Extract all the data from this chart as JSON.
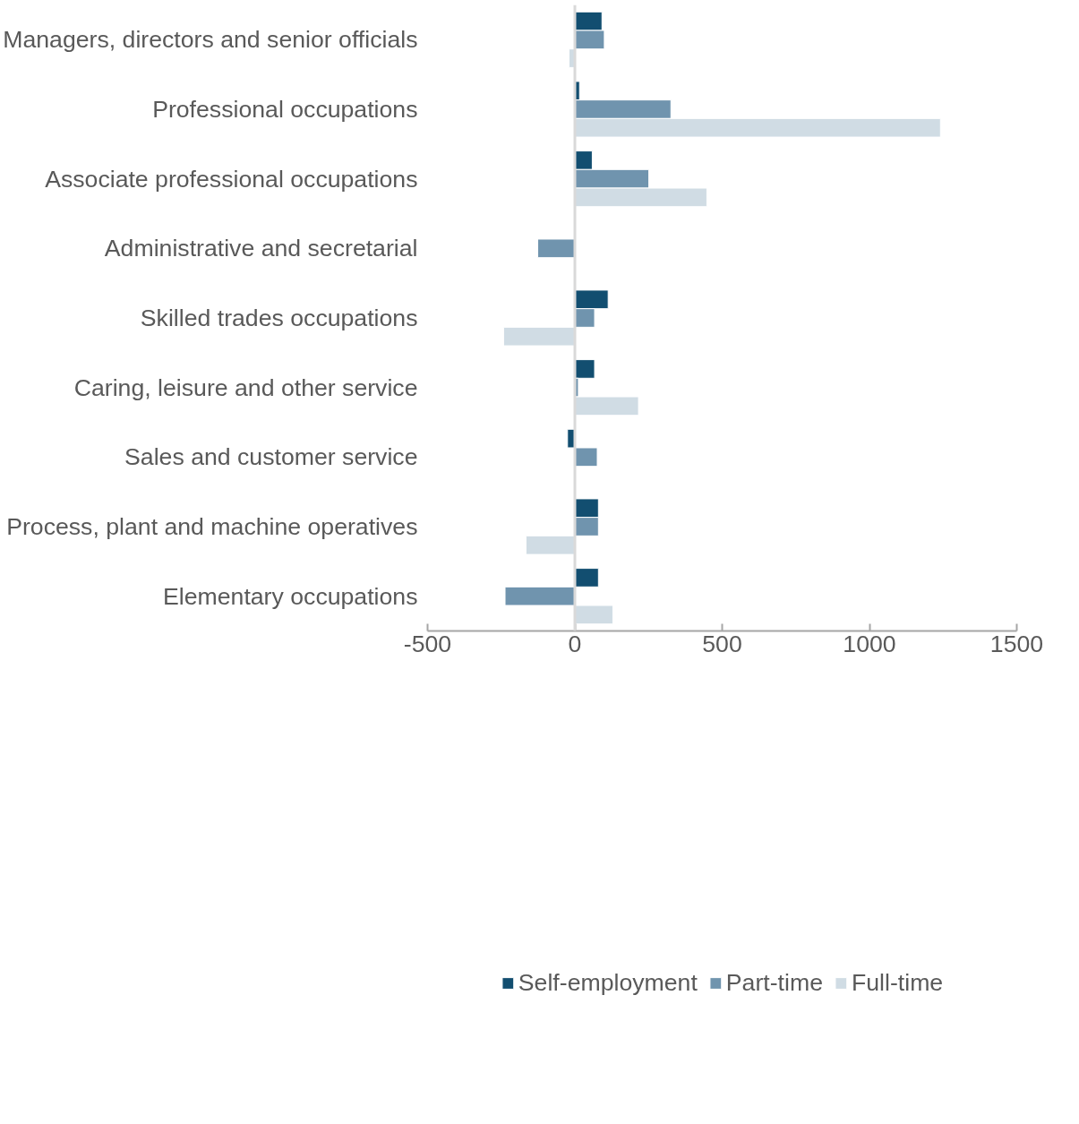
{
  "chart_data": {
    "type": "bar",
    "orientation": "horizontal",
    "categories": [
      "Managers, directors and senior officials",
      "Professional occupations",
      "Associate professional occupations",
      "Administrative and secretarial",
      "Skilled trades occupations",
      "Caring, leisure and other service",
      "Sales and customer service",
      "Process, plant and machine operatives",
      "Elementary occupations"
    ],
    "series": [
      {
        "name": "Self-employment",
        "color": "#124e70",
        "values": [
          92,
          16,
          59,
          null,
          113,
          67,
          -25,
          80,
          80
        ]
      },
      {
        "name": "Part-time",
        "color": "#7094ae",
        "values": [
          100,
          326,
          251,
          -126,
          67,
          12,
          76,
          80,
          -237
        ]
      },
      {
        "name": "Full-time",
        "color": "#d0dce4",
        "values": [
          -20,
          1241,
          448,
          null,
          -242,
          216,
          null,
          -166,
          129
        ]
      }
    ],
    "ref_lines": [
      {
        "axis": "x",
        "value": 0,
        "color": "#d9d9d9"
      }
    ],
    "xlim": [
      -500,
      1500
    ],
    "xticks": [
      -500,
      0,
      500,
      1000,
      1500
    ],
    "grid": false,
    "legend": "bottom"
  }
}
